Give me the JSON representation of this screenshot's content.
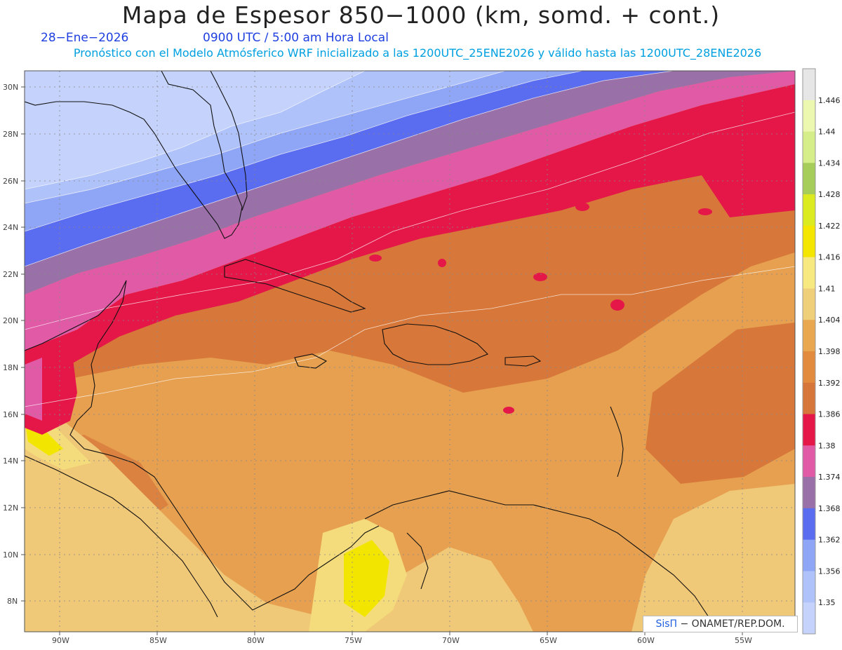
{
  "title": "Mapa de Espesor 850−1000 (km, somd. + cont.)",
  "date_label": "28−Ene−2026",
  "time_label": "0900 UTC / 5:00 am Hora Local",
  "forecast_label": "Pronóstico con el Modelo Atmósferico WRF inicializado a las 1200UTC_25ENE2026 y válido hasta las  1200UTC_28ENE2026",
  "lat_labels": [
    "30N",
    "28N",
    "26N",
    "24N",
    "22N",
    "20N",
    "18N",
    "16N",
    "14N",
    "12N",
    "10N",
    "8N"
  ],
  "lon_labels": [
    "90W",
    "85W",
    "80W",
    "75W",
    "70W",
    "65W",
    "60W",
    "55W"
  ],
  "colorbar": {
    "labels": [
      "1.446",
      "1.44",
      "1.434",
      "1.428",
      "1.422",
      "1.416",
      "1.41",
      "1.404",
      "1.398",
      "1.392",
      "1.386",
      "1.38",
      "1.374",
      "1.368",
      "1.362",
      "1.356",
      "1.35"
    ],
    "colors": [
      "#e6e6e6",
      "#ecf7b0",
      "#d6ee8a",
      "#a6cc5a",
      "#dcea20",
      "#f5e600",
      "#f8e880",
      "#f0cf7a",
      "#e9a850",
      "#e28b3e",
      "#d6763a",
      "#e41748",
      "#e05aa6",
      "#9a70a8",
      "#5a6cf0",
      "#8ea6f5",
      "#b0c2fa",
      "#c4d2fc"
    ]
  },
  "credit": {
    "logo": "SisΠ",
    "text": "− ONAMET/REP.DOM."
  }
}
